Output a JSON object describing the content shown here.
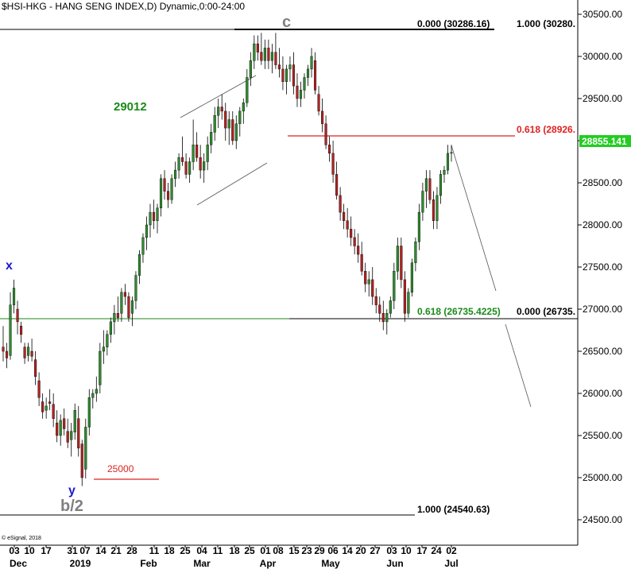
{
  "chart_data": {
    "type": "candlestick",
    "title": "$HSI-HKG - HANG SENG INDEX,D) Dynamic,0:00-24:00",
    "last_price": "28855.141",
    "ylim": [
      24300,
      30550
    ],
    "y_ticks": [
      "24500.00",
      "25000.00",
      "25500.00",
      "26000.00",
      "26500.00",
      "27000.00",
      "27500.00",
      "28000.00",
      "28500.00",
      "29000.00",
      "29500.00",
      "30000.00",
      "30500.00"
    ],
    "x_day_labels": [
      "03",
      "10",
      "17",
      "31",
      "07",
      "14",
      "21",
      "28",
      "11",
      "18",
      "25",
      "04",
      "11",
      "18",
      "25",
      "01",
      "08",
      "15",
      "23",
      "29",
      "06",
      "14",
      "20",
      "27",
      "03",
      "10",
      "17",
      "24",
      "02"
    ],
    "x_month_labels": [
      "Dec",
      "2019",
      "Feb",
      "Mar",
      "Apr",
      "May",
      "Jun",
      "Jul"
    ],
    "fib_labels": {
      "top_left": "0.000 (30286.16)",
      "top_right": "1.000 (30280.",
      "red_left": "0.618 (28926.",
      "green_left": "0.618 (26735.4225)",
      "green_right": "0.000 (26735.",
      "bottom": "1.000 (24540.63)"
    },
    "wave_labels": {
      "x": "x",
      "y": "y",
      "b2": "b/2",
      "c": "c"
    },
    "annotations": {
      "level_29012": "29012",
      "level_25000": "25000",
      "copyright": "© eSignal, 2018"
    },
    "colors": {
      "up": "#2e8b2e",
      "down": "#b22222",
      "red_line": "#dd2222",
      "green_line": "#1a8a1a",
      "blue_label": "#1a1acc",
      "gray_label": "#808080",
      "green_text": "#1a8a1a",
      "price_box": "#22cc22"
    },
    "candles": [
      [
        26550,
        26800,
        26380,
        26500
      ],
      [
        26500,
        26600,
        26300,
        26420
      ],
      [
        26450,
        27200,
        26400,
        27050
      ],
      [
        27050,
        27350,
        26950,
        27250
      ],
      [
        27000,
        27100,
        26700,
        26850
      ],
      [
        26800,
        26850,
        26600,
        26700
      ],
      [
        26550,
        26600,
        26350,
        26420
      ],
      [
        26450,
        26600,
        26380,
        26550
      ],
      [
        26500,
        26650,
        26380,
        26440
      ],
      [
        26400,
        26500,
        26100,
        26200
      ],
      [
        26150,
        26250,
        25850,
        25950
      ],
      [
        25900,
        26000,
        25700,
        25780
      ],
      [
        25800,
        25950,
        25700,
        25850
      ],
      [
        25900,
        26050,
        25800,
        25880
      ],
      [
        25870,
        26000,
        25600,
        25700
      ],
      [
        25650,
        25800,
        25420,
        25500
      ],
      [
        25500,
        25750,
        25380,
        25680
      ],
      [
        25700,
        25820,
        25500,
        25580
      ],
      [
        25550,
        25700,
        25350,
        25420
      ],
      [
        25450,
        25650,
        25250,
        25550
      ],
      [
        25540,
        25880,
        25450,
        25800
      ],
      [
        25700,
        25850,
        25250,
        25350
      ],
      [
        25400,
        25450,
        24900,
        25000
      ],
      [
        25100,
        25700,
        24990,
        25600
      ],
      [
        25600,
        26050,
        25500,
        25950
      ],
      [
        25950,
        26050,
        25820,
        26000
      ],
      [
        26000,
        26200,
        25900,
        26050
      ],
      [
        26100,
        26600,
        26000,
        26500
      ],
      [
        26500,
        26750,
        26350,
        26550
      ],
      [
        26550,
        26750,
        26450,
        26700
      ],
      [
        26700,
        26900,
        26600,
        26850
      ],
      [
        26850,
        27050,
        26700,
        26950
      ],
      [
        26950,
        27150,
        26850,
        26900
      ],
      [
        26950,
        27250,
        26850,
        27200
      ],
      [
        27200,
        27300,
        27050,
        27150
      ],
      [
        27150,
        27200,
        26850,
        26900
      ],
      [
        26950,
        27150,
        26800,
        27100
      ],
      [
        27100,
        27450,
        27000,
        27400
      ],
      [
        27400,
        27700,
        27300,
        27650
      ],
      [
        27650,
        27900,
        27550,
        27850
      ],
      [
        27850,
        28100,
        27700,
        28000
      ],
      [
        28000,
        28250,
        27850,
        28150
      ],
      [
        28150,
        28300,
        27950,
        28050
      ],
      [
        28050,
        28250,
        27900,
        28200
      ],
      [
        28200,
        28600,
        28100,
        28550
      ],
      [
        28550,
        28650,
        28300,
        28400
      ],
      [
        28400,
        28500,
        28200,
        28300
      ],
      [
        28300,
        28600,
        28250,
        28550
      ],
      [
        28550,
        28750,
        28450,
        28650
      ],
      [
        28650,
        28850,
        28550,
        28800
      ],
      [
        28800,
        29050,
        28700,
        28750
      ],
      [
        28750,
        28850,
        28550,
        28600
      ],
      [
        28600,
        28800,
        28500,
        28750
      ],
      [
        28750,
        29250,
        28650,
        28950
      ],
      [
        28950,
        29100,
        28750,
        28800
      ],
      [
        28800,
        28950,
        28550,
        28650
      ],
      [
        28650,
        28850,
        28500,
        28750
      ],
      [
        28750,
        29050,
        28650,
        28950
      ],
      [
        28950,
        29200,
        28850,
        29100
      ],
      [
        29100,
        29400,
        29000,
        29300
      ],
      [
        29300,
        29500,
        29150,
        29400
      ],
      [
        29400,
        29550,
        29250,
        29350
      ],
      [
        29350,
        29450,
        29000,
        29150
      ],
      [
        29150,
        29350,
        28950,
        29250
      ],
      [
        29250,
        29350,
        28950,
        29000
      ],
      [
        29000,
        29300,
        28900,
        29200
      ],
      [
        29200,
        29400,
        29050,
        29350
      ],
      [
        29350,
        29500,
        29200,
        29450
      ],
      [
        29450,
        29850,
        29400,
        29750
      ],
      [
        29750,
        30050,
        29650,
        29950
      ],
      [
        29950,
        30250,
        29850,
        30150
      ],
      [
        30150,
        30250,
        29950,
        30050
      ],
      [
        30050,
        30280,
        29900,
        29950
      ],
      [
        29950,
        30200,
        29850,
        30100
      ],
      [
        30100,
        30200,
        29850,
        29950
      ],
      [
        29950,
        30150,
        29800,
        30050
      ],
      [
        30050,
        30280,
        29850,
        29900
      ],
      [
        29900,
        30100,
        29750,
        29850
      ],
      [
        29850,
        30000,
        29600,
        29700
      ],
      [
        29700,
        29900,
        29550,
        29850
      ],
      [
        29850,
        30000,
        29700,
        29900
      ],
      [
        29900,
        30050,
        29550,
        29650
      ],
      [
        29650,
        29800,
        29400,
        29500
      ],
      [
        29500,
        29700,
        29400,
        29600
      ],
      [
        29600,
        29800,
        29500,
        29750
      ],
      [
        29750,
        29900,
        29650,
        29850
      ],
      [
        29850,
        30100,
        29750,
        30000
      ],
      [
        29950,
        30050,
        29550,
        29600
      ],
      [
        29550,
        29650,
        29300,
        29350
      ],
      [
        29350,
        29500,
        29100,
        29200
      ],
      [
        29200,
        29300,
        28900,
        28950
      ],
      [
        28950,
        29050,
        28750,
        28850
      ],
      [
        28850,
        29000,
        28500,
        28600
      ],
      [
        28600,
        28750,
        28300,
        28350
      ],
      [
        28350,
        28450,
        28050,
        28150
      ],
      [
        28150,
        28250,
        27950,
        28050
      ],
      [
        28050,
        28200,
        27850,
        27950
      ],
      [
        27950,
        28100,
        27750,
        27850
      ],
      [
        27850,
        27950,
        27650,
        27750
      ],
      [
        27750,
        27900,
        27550,
        27650
      ],
      [
        27650,
        27800,
        27400,
        27450
      ],
      [
        27450,
        27550,
        27200,
        27300
      ],
      [
        27300,
        27450,
        27150,
        27350
      ],
      [
        27350,
        27500,
        27050,
        27150
      ],
      [
        27150,
        27250,
        26950,
        27050
      ],
      [
        27050,
        27150,
        26850,
        26950
      ],
      [
        26950,
        27100,
        26750,
        26850
      ],
      [
        26850,
        27000,
        26700,
        26950
      ],
      [
        26950,
        27150,
        26900,
        27100
      ],
      [
        27100,
        27550,
        27000,
        27450
      ],
      [
        27450,
        27850,
        27350,
        27750
      ],
      [
        27750,
        27850,
        27250,
        27350
      ],
      [
        27350,
        27450,
        26850,
        26950
      ],
      [
        26950,
        27250,
        26900,
        27200
      ],
      [
        27200,
        27600,
        27150,
        27550
      ],
      [
        27550,
        27850,
        27450,
        27800
      ],
      [
        27800,
        28250,
        27700,
        28150
      ],
      [
        28150,
        28500,
        28050,
        28400
      ],
      [
        28400,
        28650,
        28200,
        28550
      ],
      [
        28550,
        28650,
        28250,
        28300
      ],
      [
        28300,
        28400,
        27950,
        28050
      ],
      [
        28050,
        28450,
        27950,
        28350
      ],
      [
        28350,
        28650,
        28250,
        28600
      ],
      [
        28600,
        28700,
        28500,
        28650
      ],
      [
        28650,
        28950,
        28600,
        28850
      ],
      [
        28850,
        28950,
        28750,
        28860
      ]
    ]
  }
}
